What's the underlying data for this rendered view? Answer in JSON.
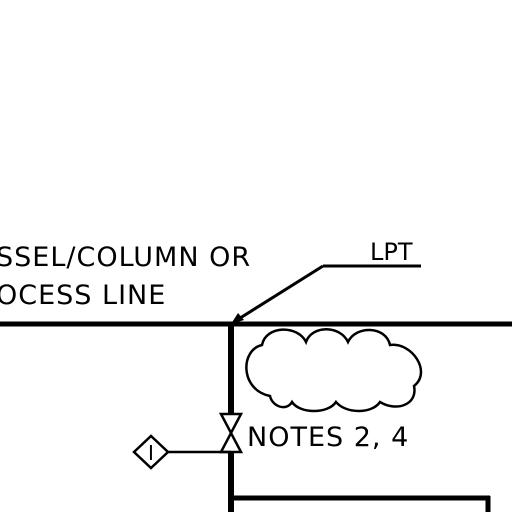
{
  "labels": {
    "vessel_line1": "SSEL/COLUMN OR",
    "vessel_line2": "OCESS LINE",
    "lpt": "LPT",
    "notes": "NOTES 2, 4",
    "instrument": "I"
  },
  "colors": {
    "ink": "#000000",
    "background": "#ffffff"
  }
}
